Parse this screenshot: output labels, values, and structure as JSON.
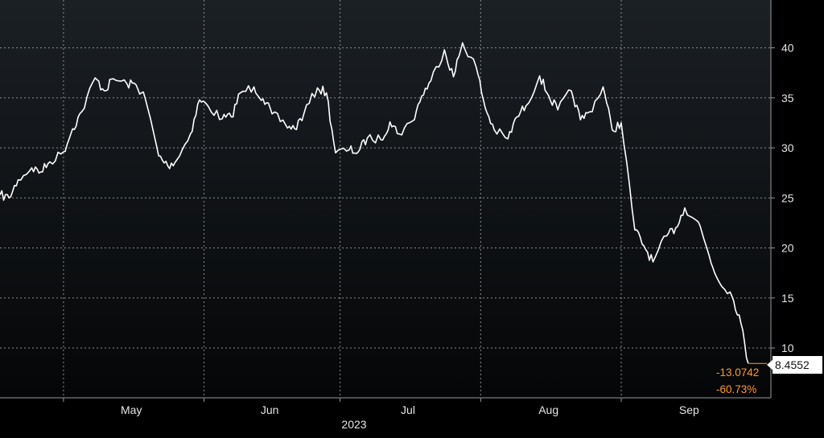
{
  "colors": {
    "background": "#000000",
    "plot_top": "#1b2025",
    "plot_bottom": "#050607",
    "grid": "#8a8f94",
    "line": "#ffffff",
    "change_text": "#ff9a2e",
    "last_label_bg": "#ffffff"
  },
  "chart_data": {
    "type": "line",
    "title": "",
    "xlabel": "2023",
    "ylabel": "",
    "x_ticks": [
      "May",
      "Jun",
      "Jul",
      "Aug",
      "Sep"
    ],
    "x_tick_dates": [
      "2023-05-01",
      "2023-06-01",
      "2023-07-01",
      "2023-08-01",
      "2023-09-01"
    ],
    "x_range": [
      "2023-04-17",
      "2023-10-04"
    ],
    "y_ticks": [
      10,
      15,
      20,
      25,
      30,
      35,
      40
    ],
    "ylim": [
      5,
      45
    ],
    "grid": true,
    "y_axis_side": "right",
    "last_value_label": "8.4552",
    "change_labels": [
      "-13.0742",
      "-60.73%"
    ],
    "series": [
      {
        "dates": [
          "2023-04-17",
          "2023-04-19",
          "2023-04-21",
          "2023-04-24",
          "2023-04-26",
          "2023-04-28",
          "2023-05-01",
          "2023-05-03",
          "2023-05-05",
          "2023-05-08",
          "2023-05-10",
          "2023-05-12",
          "2023-05-15",
          "2023-05-17",
          "2023-05-19",
          "2023-05-22",
          "2023-05-24",
          "2023-05-26",
          "2023-05-29",
          "2023-05-31",
          "2023-06-02",
          "2023-06-05",
          "2023-06-07",
          "2023-06-09",
          "2023-06-12",
          "2023-06-14",
          "2023-06-16",
          "2023-06-19",
          "2023-06-21",
          "2023-06-23",
          "2023-06-26",
          "2023-06-28",
          "2023-06-30",
          "2023-07-03",
          "2023-07-05",
          "2023-07-07",
          "2023-07-10",
          "2023-07-12",
          "2023-07-14",
          "2023-07-17",
          "2023-07-19",
          "2023-07-21",
          "2023-07-24",
          "2023-07-26",
          "2023-07-28",
          "2023-07-31",
          "2023-08-02",
          "2023-08-04",
          "2023-08-07",
          "2023-08-09",
          "2023-08-11",
          "2023-08-14",
          "2023-08-16",
          "2023-08-18",
          "2023-08-21",
          "2023-08-23",
          "2023-08-25",
          "2023-08-28",
          "2023-08-30",
          "2023-09-01",
          "2023-09-04",
          "2023-09-06",
          "2023-09-08",
          "2023-09-11",
          "2023-09-13",
          "2023-09-15",
          "2023-09-18",
          "2023-09-20",
          "2023-09-22",
          "2023-09-25",
          "2023-09-27",
          "2023-09-29"
        ],
        "values": [
          25.3,
          25.0,
          26.8,
          28.0,
          27.6,
          28.6,
          29.6,
          31.9,
          33.6,
          37.0,
          35.7,
          36.9,
          36.4,
          36.3,
          35.0,
          29.2,
          28.2,
          28.8,
          31.4,
          34.8,
          34.1,
          32.9,
          33.1,
          35.5,
          36.1,
          34.9,
          33.4,
          32.3,
          31.9,
          33.4,
          36.0,
          35.5,
          29.5,
          29.8,
          29.6,
          31.0,
          30.8,
          32.6,
          31.4,
          32.7,
          35.2,
          36.7,
          39.8,
          37.1,
          40.5,
          38.1,
          34.0,
          31.8,
          30.9,
          33.1,
          34.2,
          37.2,
          35.2,
          33.8,
          35.7,
          32.8,
          33.6,
          36.1,
          31.8,
          32.5,
          21.8,
          20.2,
          18.6,
          21.2,
          22.0,
          24.0,
          22.6,
          19.8,
          17.1,
          15.6,
          13.3,
          8.4552
        ]
      }
    ]
  }
}
